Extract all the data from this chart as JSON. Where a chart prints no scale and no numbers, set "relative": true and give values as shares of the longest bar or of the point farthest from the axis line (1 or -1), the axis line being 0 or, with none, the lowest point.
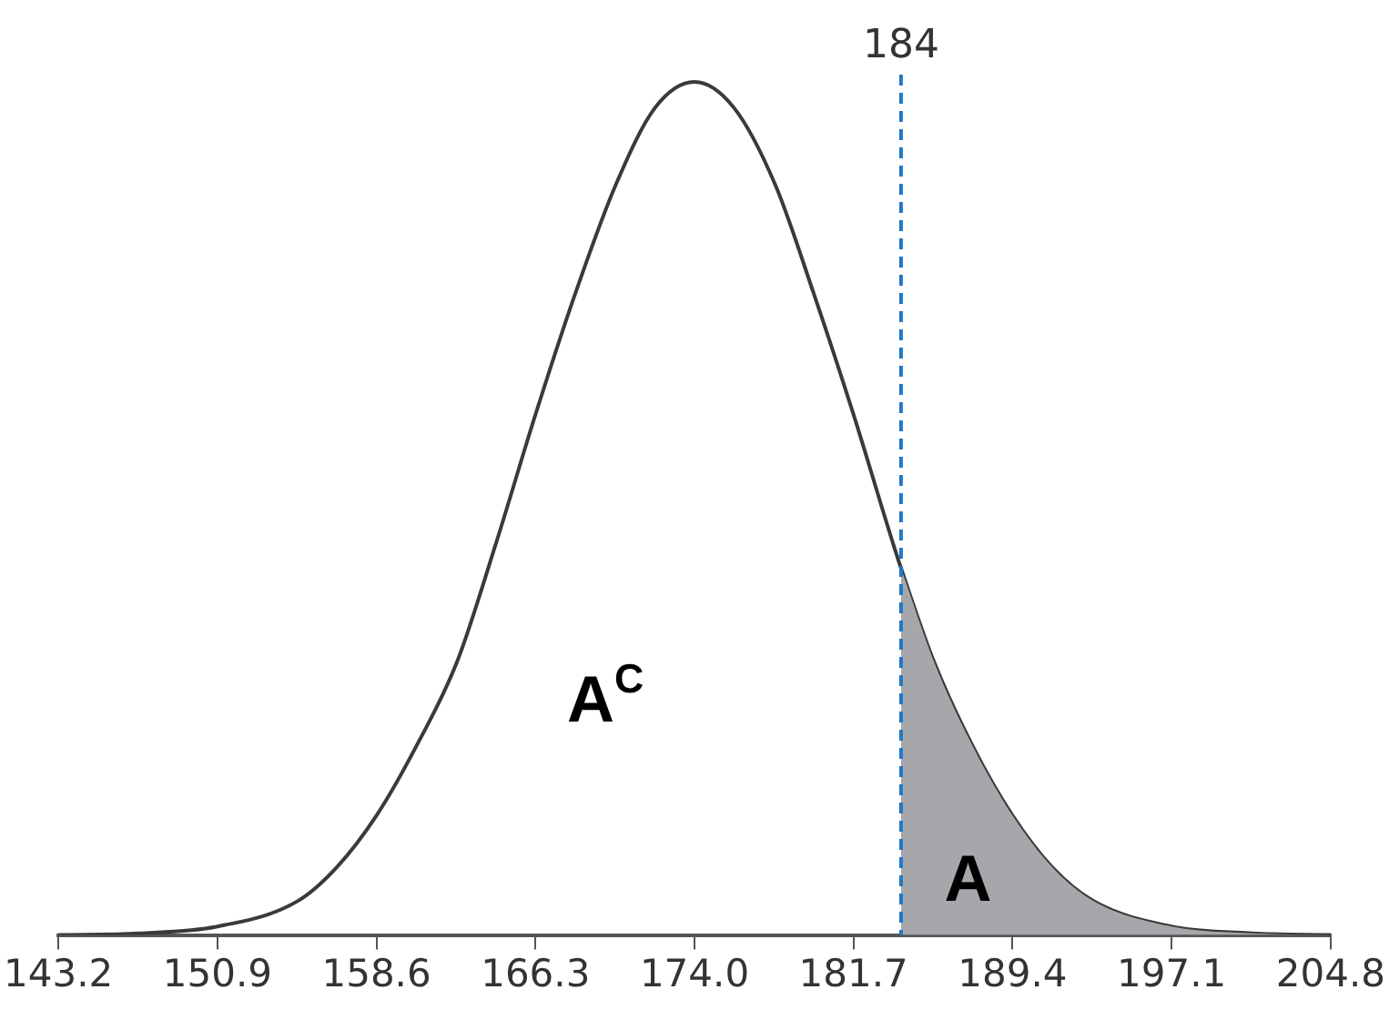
{
  "chart_data": {
    "type": "line",
    "relative": true,
    "xlim": [
      143.2,
      204.8
    ],
    "xticks": [
      143.2,
      150.9,
      158.6,
      166.3,
      {
        "value": 174,
        "label": "174.0"
      },
      181.7,
      189.4,
      197.1,
      204.8
    ],
    "grid": false,
    "legend": false,
    "marker": "none",
    "series": [
      {
        "type": "line",
        "color": "#3a3a3a",
        "x": [
          143.2,
          147.1,
          150.9,
          154.8,
          156.7,
          158.6,
          160.5,
          162.5,
          164.4,
          166.3,
          168.2,
          170.2,
          172.1,
          174,
          175.9,
          177.9,
          179.8,
          181.7,
          183.6,
          184,
          185.6,
          187.5,
          189.4,
          191.3,
          193.3,
          197.1,
          201.0,
          204.8
        ],
        "values": [
          0,
          0.002,
          0.01,
          0.04,
          0.08,
          0.14,
          0.22,
          0.32,
          0.46,
          0.61,
          0.75,
          0.88,
          0.97,
          1,
          0.97,
          0.88,
          0.75,
          0.61,
          0.46,
          0.43,
          0.32,
          0.22,
          0.14,
          0.08,
          0.04,
          0.01,
          0.002,
          0
        ]
      },
      {
        "type": "area",
        "color": "#a6a7ab",
        "x": [
          184,
          185.6,
          187.5,
          189.4,
          191.3,
          193.3,
          197.1,
          201.0,
          204.8
        ],
        "values": [
          0.43,
          0.32,
          0.22,
          0.14,
          0.08,
          0.04,
          0.01,
          0.002,
          0
        ]
      }
    ],
    "ref_lines": [
      {
        "axis": "x",
        "value": 184,
        "label": "184",
        "color": "#1f78c8",
        "line_style": "dashed"
      }
    ],
    "annotations": [
      "A$^{C}$",
      "A"
    ]
  }
}
